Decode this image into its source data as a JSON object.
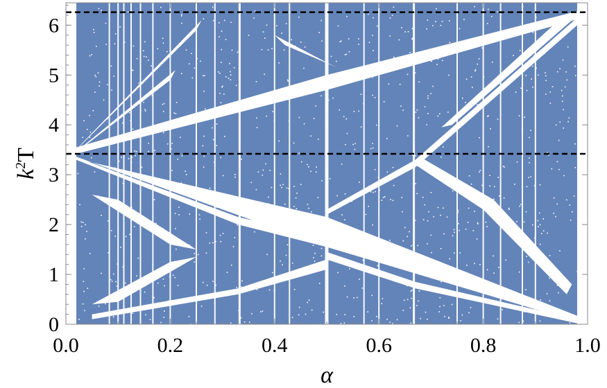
{
  "chart_data": {
    "type": "heatmap",
    "description_kind": "spectrum",
    "xlabel": "α",
    "ylabel_base": "k",
    "ylabel_sup": "2",
    "ylabel_suffix": "T",
    "xlim": [
      0.0,
      1.0
    ],
    "ylim": [
      0,
      6.45
    ],
    "x_ticks": [
      0.0,
      0.2,
      0.4,
      0.6,
      0.8,
      1.0
    ],
    "x_tick_labels": [
      "0.0",
      "0.2",
      "0.4",
      "0.6",
      "0.8",
      "1.0"
    ],
    "y_ticks": [
      0,
      1,
      2,
      3,
      4,
      5,
      6
    ],
    "y_tick_labels": [
      "0",
      "1",
      "2",
      "3",
      "4",
      "5",
      "6"
    ],
    "fill_color": "#6384b8",
    "band_color": "#ffffff",
    "reference_lines": [
      {
        "y": 6.26,
        "style": "dashed",
        "color": "#000000"
      },
      {
        "y": 3.42,
        "style": "dashed",
        "color": "#000000"
      }
    ],
    "data_x_range": [
      0.02,
      0.98
    ],
    "rational_alphas": [
      0.0833,
      0.1,
      0.111,
      0.125,
      0.1429,
      0.1667,
      0.2,
      0.25,
      0.2857,
      0.333,
      0.4,
      0.4286,
      0.5,
      0.5714,
      0.6,
      0.667,
      0.75,
      0.8,
      0.8333,
      0.875,
      0.9
    ]
  }
}
